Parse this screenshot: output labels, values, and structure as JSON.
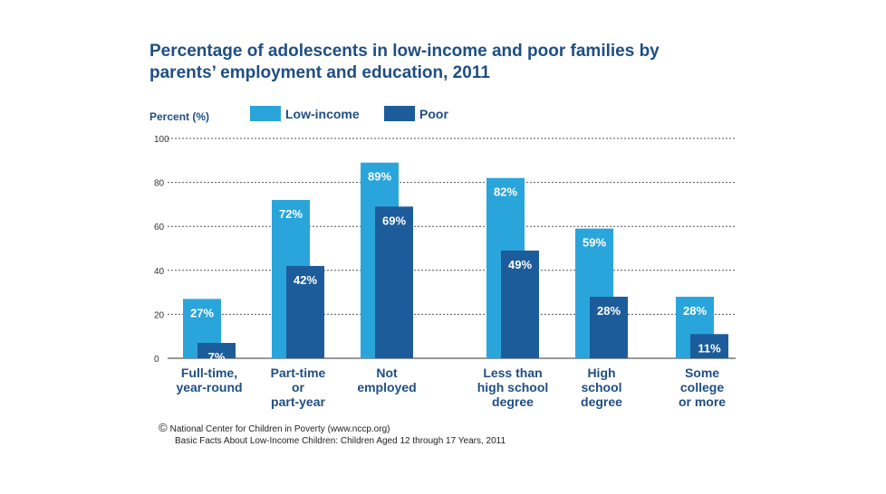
{
  "chart_data": {
    "type": "bar",
    "title": "Percentage of adolescents in low-income and poor families by parents’ employment and education, 2011",
    "ylabel": "Percent (%)",
    "ylim": [
      0,
      100
    ],
    "yticks": [
      0,
      20,
      40,
      60,
      80,
      100
    ],
    "grid": true,
    "legend_position": "top",
    "categories": [
      [
        "Full-time,",
        "year-round"
      ],
      [
        "Part-time",
        "or",
        "part-year"
      ],
      [
        "Not",
        "employed"
      ],
      [
        "Less than",
        "high school",
        "degree"
      ],
      [
        "High",
        "school",
        "degree"
      ],
      [
        "Some",
        "college",
        "or more"
      ]
    ],
    "series": [
      {
        "name": "Low-income",
        "color": "#2aa5dc",
        "values": [
          27,
          72,
          89,
          82,
          59,
          28
        ],
        "labels": [
          "27%",
          "72%",
          "89%",
          "82%",
          "59%",
          "28%"
        ]
      },
      {
        "name": "Poor",
        "color": "#1d5c9b",
        "values": [
          7,
          42,
          69,
          49,
          28,
          11
        ],
        "labels": [
          "7%",
          "42%",
          "69%",
          "49%",
          "28%",
          "11%"
        ]
      }
    ]
  },
  "credit": {
    "symbol": "©",
    "line1": "National Center for Children in Poverty (www.nccp.org)",
    "line2": "Basic Facts About Low-Income Children: Children Aged 12 through 17 Years, 2011"
  }
}
